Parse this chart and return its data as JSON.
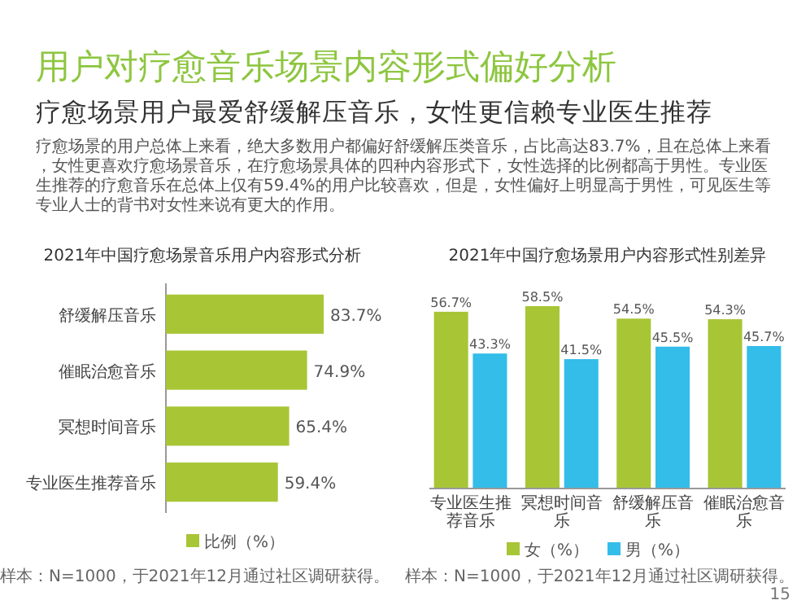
{
  "chart_data": [
    {
      "type": "other",
      "title": "用户对疗愈音乐场景内容形式偏好分析",
      "subtitle": "疗愈场景用户最爱舒缓解压音乐，女性更信赖专业医生推荐",
      "annotations": [
        "疗愈场景的用户总体上来看，绝大多数用户都偏好舒缓解压类音乐，占比高达83.7%，且在总体上来看，女性更喜欢疗愈场景音乐，在疗愈场景具体的四种内容形式下，女性选择的比例都高于男性。专业医生推荐的疗愈音乐在总体上仅有59.4%的用户比较喜欢，但是，女性偏好上明显高于男性，可见医生等专业人士的背书对女性来说有更大的作用。",
        "15"
      ]
    },
    {
      "type": "bar",
      "orientation": "horizontal",
      "title": "2021年中国疗愈场景音乐用户内容形式分析",
      "legend": "bottom",
      "categories": [
        "舒缓解压音乐",
        "催眠治愈音乐",
        "冥想时间音乐",
        "专业医生推荐音乐"
      ],
      "series": [
        {
          "name": "比例（%）",
          "color": "#a8c536",
          "values": [
            83.7,
            74.9,
            65.4,
            59.4
          ],
          "value_labels": [
            "83.7%",
            "74.9%",
            "65.4%",
            "59.4%"
          ]
        }
      ],
      "annotations": [
        "样本：N=1000，于2021年12月通过社区调研获得。"
      ]
    },
    {
      "type": "bar",
      "title": "2021年中国疗愈场景用户内容形式性别差异",
      "legend": "bottom",
      "categories": [
        "专业医生推荐音乐",
        "冥想时间音乐",
        "舒缓解压音乐",
        "催眠治愈音乐"
      ],
      "series": [
        {
          "name": "女（%）",
          "color": "#a8c536",
          "values": [
            56.7,
            58.5,
            54.5,
            54.3
          ],
          "value_labels": [
            "56.7%",
            "58.5%",
            "54.5%",
            "54.3%"
          ]
        },
        {
          "name": "男（%）",
          "color": "#33bde8",
          "values": [
            43.3,
            41.5,
            45.5,
            45.7
          ],
          "value_labels": [
            "43.3%",
            "41.5%",
            "45.5%",
            "45.7%"
          ]
        }
      ],
      "annotations": [
        "样本：N=1000，于2021年12月通过社区调研获得。"
      ]
    }
  ]
}
